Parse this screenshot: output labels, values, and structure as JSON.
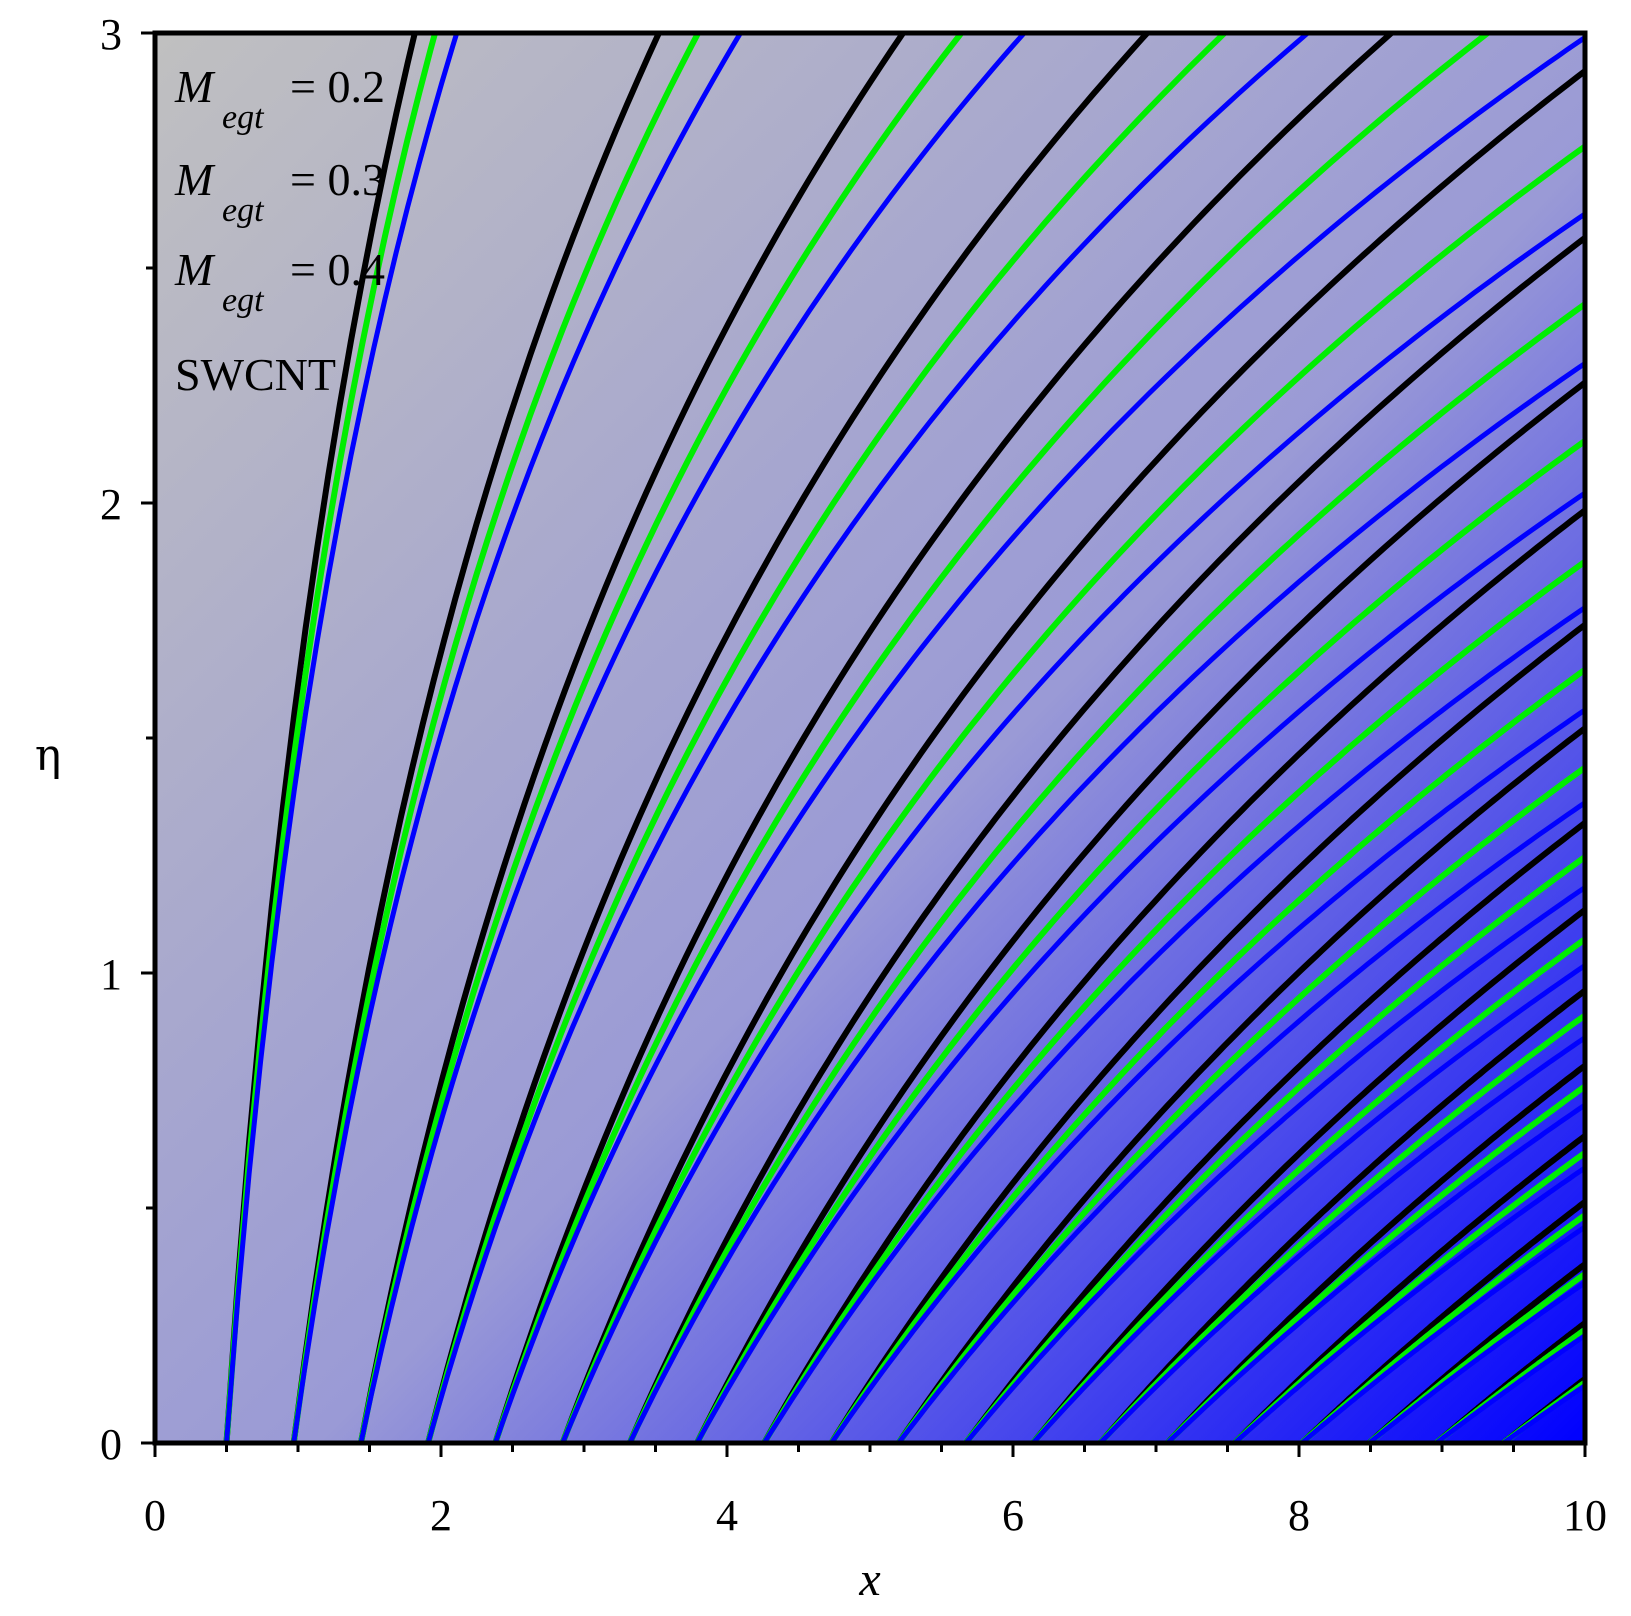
{
  "chart_data": {
    "type": "line",
    "subtype": "contour",
    "title": "",
    "xlabel": "x",
    "ylabel": "η",
    "xlim": [
      0,
      10
    ],
    "ylim": [
      0,
      3
    ],
    "x_ticks": [
      "0",
      "2",
      "4",
      "6",
      "8",
      "10"
    ],
    "y_ticks": [
      "0",
      "1",
      "2",
      "3"
    ],
    "grid": false,
    "legend_position": "top-left",
    "legend": {
      "entries": [
        {
          "symbol": "M",
          "subscript": "egt",
          "text": "= 0.2"
        },
        {
          "symbol": "M",
          "subscript": "egt",
          "text": "= 0.3"
        },
        {
          "symbol": "M",
          "subscript": "egt",
          "text": "= 0.4"
        }
      ],
      "note": "SWCNT"
    },
    "background_gradient": {
      "low_color": "#c0c0c0",
      "high_color": "#0000ff"
    },
    "contour_origins_x": [
      0.5,
      0.97,
      1.44,
      1.91,
      2.38,
      2.85,
      3.32,
      3.79,
      4.26,
      4.73,
      5.2,
      5.67,
      6.14,
      6.61,
      7.08,
      7.55,
      8.02,
      8.49,
      8.96,
      9.43
    ],
    "series": [
      {
        "name": "M_egt = 0.2",
        "color": "#000000",
        "curvature_a": 0.43
      },
      {
        "name": "M_egt = 0.3",
        "color": "#00ee00",
        "curvature_a": 0.455
      },
      {
        "name": "M_egt = 0.4",
        "color": "#0000ff",
        "curvature_a": 0.48
      }
    ]
  }
}
